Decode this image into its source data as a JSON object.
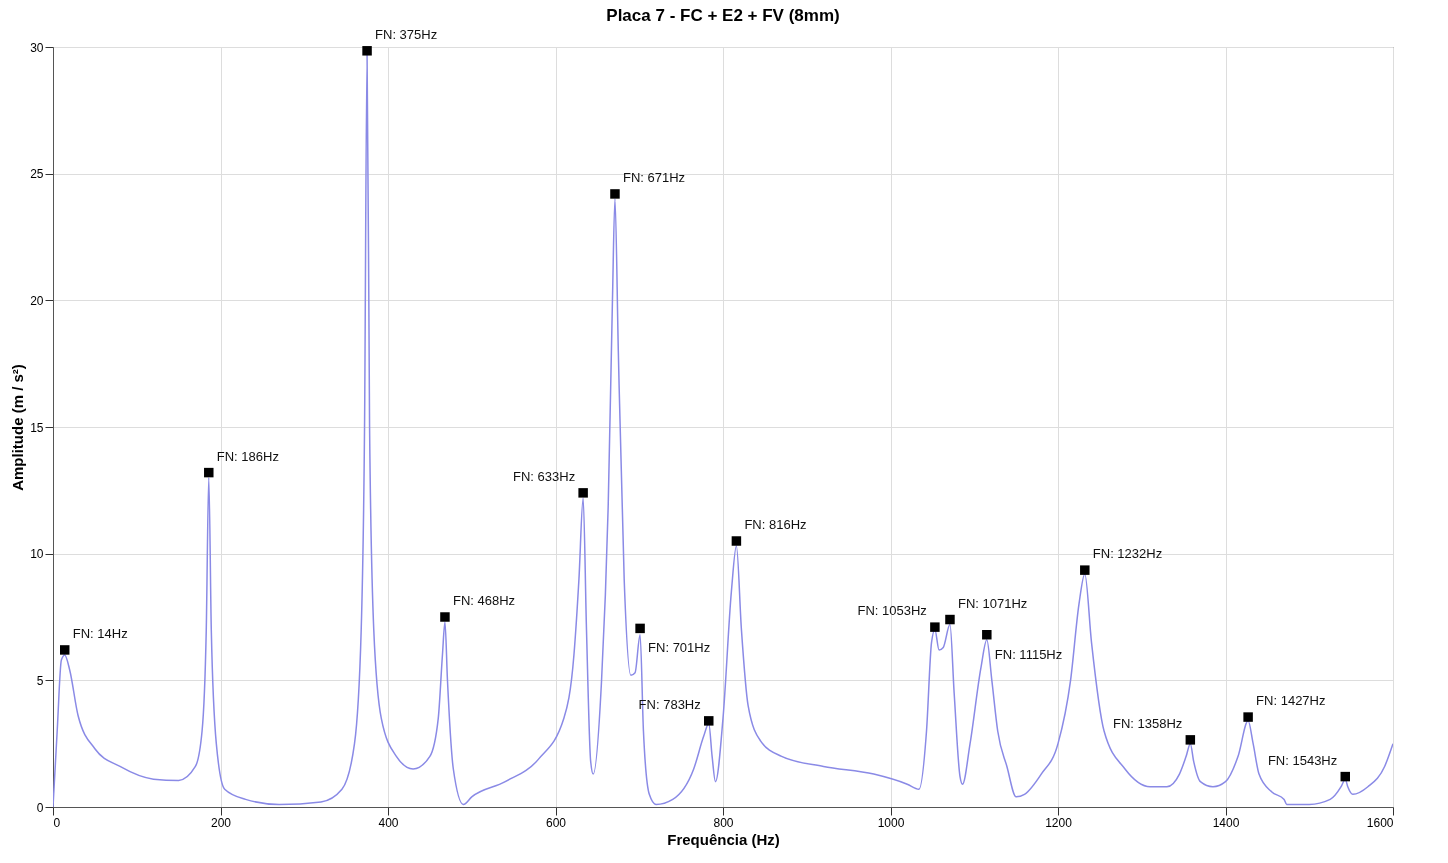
{
  "chart_data": {
    "type": "line",
    "title": "Placa 7 - FC + E2 + FV (8mm)",
    "xlabel": "Frequência (Hz)",
    "ylabel": "Amplitude (m / s²)",
    "xlim": [
      0,
      1600
    ],
    "xticks": [
      0,
      200,
      400,
      600,
      800,
      1000,
      1200,
      1400,
      1600
    ],
    "ylim": [
      0,
      30
    ],
    "yticks": [
      0,
      5,
      10,
      15,
      20,
      25,
      30
    ],
    "grid": true,
    "series": [
      {
        "color": "#8a8ae6",
        "x": [
          0,
          5,
          10,
          14,
          20,
          30,
          50,
          80,
          120,
          150,
          170,
          178,
          183,
          186,
          189,
          195,
          205,
          230,
          270,
          320,
          345,
          360,
          368,
          372,
          375,
          378,
          383,
          392,
          410,
          430,
          450,
          460,
          465,
          468,
          471,
          478,
          490,
          500,
          540,
          580,
          610,
          622,
          628,
          633,
          637,
          642,
          645,
          655,
          663,
          668,
          671,
          675,
          682,
          690,
          695,
          701,
          705,
          712,
          720,
          740,
          765,
          777,
          783,
          787,
          791,
          800,
          810,
          816,
          822,
          830,
          845,
          870,
          920,
          980,
          1020,
          1034,
          1043,
          1049,
          1053,
          1058,
          1063,
          1071,
          1076,
          1083,
          1086,
          1095,
          1108,
          1115,
          1121,
          1128,
          1139,
          1150,
          1160,
          1180,
          1200,
          1215,
          1225,
          1232,
          1240,
          1255,
          1280,
          1310,
          1330,
          1345,
          1353,
          1358,
          1362,
          1370,
          1385,
          1400,
          1415,
          1427,
          1433,
          1440,
          1455,
          1470,
          1473,
          1500,
          1525,
          1538,
          1543,
          1546,
          1552,
          1570,
          1590,
          1600
        ],
        "values": [
          0,
          3,
          5.8,
          6.0,
          5.4,
          3.6,
          2.3,
          1.6,
          1.1,
          1.05,
          1.6,
          3,
          7,
          13.0,
          7,
          2.5,
          0.7,
          0.3,
          0.1,
          0.2,
          0.7,
          2.5,
          7,
          15,
          29.7,
          15,
          7,
          3.5,
          2.0,
          1.5,
          2.0,
          3.5,
          6,
          7.3,
          5,
          1.5,
          0.1,
          0.4,
          1.0,
          1.9,
          3.5,
          6,
          9,
          12.2,
          7,
          1.8,
          1.3,
          5,
          12,
          20,
          24.0,
          18,
          9,
          5.2,
          5.3,
          6.8,
          3,
          0.5,
          0.1,
          0.3,
          1.5,
          2.8,
          3.3,
          2.0,
          1.0,
          3.5,
          8.5,
          10.3,
          7,
          4,
          2.6,
          2.0,
          1.6,
          1.3,
          0.9,
          0.7,
          3,
          6.5,
          7.0,
          6.2,
          6.3,
          7.2,
          4.5,
          1.2,
          0.9,
          2.5,
          5.5,
          6.6,
          5,
          3,
          1.6,
          0.4,
          0.5,
          1.3,
          2.5,
          5,
          8,
          9.2,
          6.5,
          3,
          1.5,
          0.8,
          0.8,
          1.3,
          2.0,
          2.5,
          1.8,
          1.0,
          0.8,
          1.0,
          2.0,
          3.4,
          2.5,
          1.3,
          0.6,
          0.3,
          0.1,
          0.1,
          0.3,
          0.8,
          1.1,
          0.8,
          0.5,
          0.8,
          1.6,
          2.5
        ]
      }
    ],
    "annotations": [
      {
        "text": "FN: 14Hz",
        "x": 14,
        "y": 6.2
      },
      {
        "text": "FN: 186Hz",
        "x": 186,
        "y": 13.2
      },
      {
        "text": "FN: 375Hz",
        "x": 375,
        "y": 29.85
      },
      {
        "text": "FN: 468Hz",
        "x": 468,
        "y": 7.5
      },
      {
        "text": "FN: 633Hz",
        "x": 633,
        "y": 12.4
      },
      {
        "text": "FN: 671Hz",
        "x": 671,
        "y": 24.2
      },
      {
        "text": "FN: 701Hz",
        "x": 701,
        "y": 7.05
      },
      {
        "text": "FN: 783Hz",
        "x": 783,
        "y": 3.4
      },
      {
        "text": "FN: 816Hz",
        "x": 816,
        "y": 10.5
      },
      {
        "text": "FN: 1053Hz",
        "x": 1053,
        "y": 7.1
      },
      {
        "text": "FN: 1071Hz",
        "x": 1071,
        "y": 7.4
      },
      {
        "text": "FN: 1115Hz",
        "x": 1115,
        "y": 6.8
      },
      {
        "text": "FN: 1232Hz",
        "x": 1232,
        "y": 9.35
      },
      {
        "text": "FN: 1358Hz",
        "x": 1358,
        "y": 2.65
      },
      {
        "text": "FN: 1427Hz",
        "x": 1427,
        "y": 3.55
      },
      {
        "text": "FN: 1543Hz",
        "x": 1543,
        "y": 1.2
      }
    ]
  }
}
